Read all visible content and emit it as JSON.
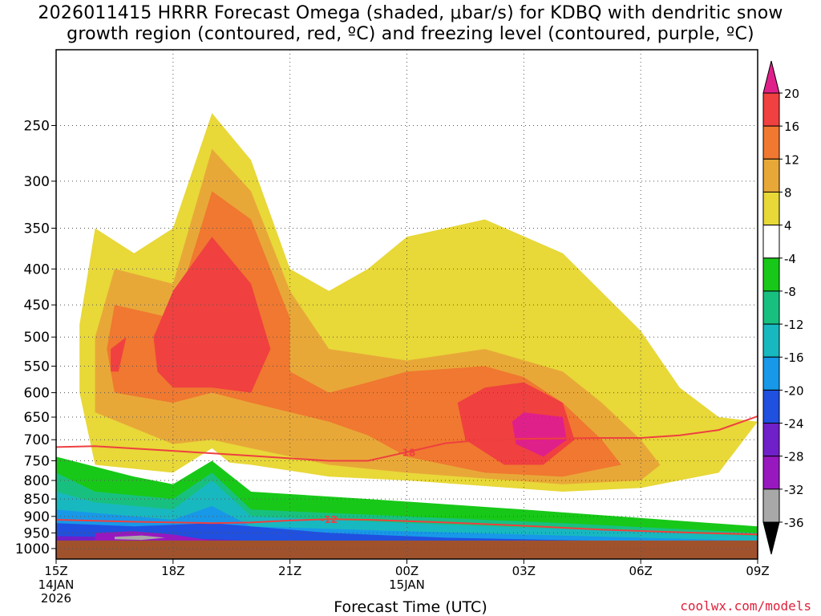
{
  "title_line1": "2026011415 HRRR Forecast Omega (shaded, μbar/s) for KDBQ with dendritic snow",
  "title_line2": "growth region (contoured, red, ºC) and freezing level (contoured, purple, ºC)",
  "credit": "coolwx.com/models",
  "chart_data": {
    "type": "heatmap",
    "xlabel": "Forecast Time (UTC)",
    "ylabel": "",
    "x_ticks": [
      {
        "hour": 15,
        "label": "15Z",
        "date": "14JAN",
        "year": "2026"
      },
      {
        "hour": 18,
        "label": "18Z",
        "date": "",
        "year": ""
      },
      {
        "hour": 21,
        "label": "21Z",
        "date": "",
        "year": ""
      },
      {
        "hour": 24,
        "label": "00Z",
        "date": "15JAN",
        "year": ""
      },
      {
        "hour": 27,
        "label": "03Z",
        "date": "",
        "year": ""
      },
      {
        "hour": 30,
        "label": "06Z",
        "date": "",
        "year": ""
      },
      {
        "hour": 33,
        "label": "09Z",
        "date": "",
        "year": ""
      }
    ],
    "xlim_hours": [
      15,
      33
    ],
    "y_pressure_levels": [
      250,
      300,
      350,
      400,
      450,
      500,
      550,
      600,
      650,
      700,
      750,
      800,
      850,
      900,
      950,
      1000
    ],
    "ylim_hpa": [
      195,
      1035
    ],
    "log_pressure": true,
    "grid": true,
    "colorbar": {
      "position": "right",
      "bins": [
        {
          "from": 20,
          "to": 24,
          "color": "#e0208a",
          "label": ""
        },
        {
          "from": 16,
          "to": 20,
          "color": "#f04040",
          "label": "20"
        },
        {
          "from": 12,
          "to": 16,
          "color": "#f07830",
          "label": "16"
        },
        {
          "from": 8,
          "to": 12,
          "color": "#e8a838",
          "label": "12"
        },
        {
          "from": 4,
          "to": 8,
          "color": "#e8d838",
          "label": "8"
        },
        {
          "from": -4,
          "to": 4,
          "color": "#ffffff",
          "label": "4"
        },
        {
          "from": -8,
          "to": -4,
          "color": "#18c818",
          "label": "-4"
        },
        {
          "from": -12,
          "to": -8,
          "color": "#18c080",
          "label": "-8"
        },
        {
          "from": -16,
          "to": -12,
          "color": "#18b8c0",
          "label": "-12"
        },
        {
          "from": -20,
          "to": -16,
          "color": "#1898e8",
          "label": "-16"
        },
        {
          "from": -24,
          "to": -20,
          "color": "#2050e0",
          "label": "-20"
        },
        {
          "from": -28,
          "to": -24,
          "color": "#7020c8",
          "label": "-24"
        },
        {
          "from": -32,
          "to": -28,
          "color": "#9818c0",
          "label": "-28"
        },
        {
          "from": -36,
          "to": -32,
          "color": "#a8a8a8",
          "label": "-32"
        },
        {
          "from": -40,
          "to": -36,
          "color": "#000000",
          "label": "-36"
        }
      ]
    },
    "contours": [
      {
        "name": "",
        "label": "-18",
        "color": "#ee4040",
        "points": [
          [
            15,
            717
          ],
          [
            16,
            715
          ],
          [
            18,
            726
          ],
          [
            20,
            738
          ],
          [
            22,
            750
          ],
          [
            23,
            750
          ],
          [
            24,
            729
          ],
          [
            25,
            708
          ],
          [
            26,
            700
          ],
          [
            27,
            698
          ],
          [
            29,
            696
          ],
          [
            30,
            696
          ],
          [
            31,
            690
          ],
          [
            32,
            678
          ],
          [
            33,
            648
          ]
        ]
      },
      {
        "name": "",
        "label": "-12",
        "color": "#ee4040",
        "points": [
          [
            15,
            910
          ],
          [
            17,
            916
          ],
          [
            19,
            920
          ],
          [
            20,
            918
          ],
          [
            21,
            912
          ],
          [
            22,
            908
          ],
          [
            23,
            910
          ],
          [
            25,
            918
          ],
          [
            27,
            928
          ],
          [
            29,
            940
          ],
          [
            31,
            948
          ],
          [
            33,
            955
          ]
        ]
      }
    ],
    "omega_regions": [
      {
        "value": 4,
        "band": "8",
        "points": [
          [
            15.6,
            480
          ],
          [
            16,
            350
          ],
          [
            17,
            380
          ],
          [
            18,
            350
          ],
          [
            19,
            240
          ],
          [
            20,
            280
          ],
          [
            21,
            400
          ],
          [
            22,
            430
          ],
          [
            23,
            400
          ],
          [
            24,
            360
          ],
          [
            26,
            340
          ],
          [
            28,
            380
          ],
          [
            30,
            490
          ],
          [
            31,
            590
          ],
          [
            32,
            650
          ],
          [
            33,
            660
          ],
          [
            32,
            780
          ],
          [
            30,
            820
          ],
          [
            28,
            830
          ],
          [
            24,
            800
          ],
          [
            22,
            790
          ],
          [
            20,
            760
          ],
          [
            19,
            750
          ],
          [
            18,
            800
          ],
          [
            16,
            760
          ],
          [
            15.6,
            600
          ]
        ]
      },
      {
        "value": 8,
        "band": "12",
        "points": [
          [
            16,
            500
          ],
          [
            16.5,
            400
          ],
          [
            18,
            420
          ],
          [
            19,
            270
          ],
          [
            20,
            310
          ],
          [
            21,
            430
          ],
          [
            22,
            520
          ],
          [
            24,
            540
          ],
          [
            26,
            520
          ],
          [
            28,
            560
          ],
          [
            29,
            620
          ],
          [
            30,
            700
          ],
          [
            30.5,
            760
          ],
          [
            30,
            800
          ],
          [
            28,
            810
          ],
          [
            24,
            780
          ],
          [
            22,
            760
          ],
          [
            20,
            720
          ],
          [
            19,
            700
          ],
          [
            18,
            710
          ],
          [
            16,
            640
          ]
        ]
      },
      {
        "value": 12,
        "band": "16",
        "points": [
          [
            16.3,
            520
          ],
          [
            16.5,
            450
          ],
          [
            18,
            470
          ],
          [
            19,
            310
          ],
          [
            20,
            340
          ],
          [
            21,
            470
          ],
          [
            21,
            560
          ],
          [
            22,
            600
          ],
          [
            23,
            580
          ],
          [
            24,
            560
          ],
          [
            26,
            550
          ],
          [
            27,
            570
          ],
          [
            28,
            620
          ],
          [
            29,
            700
          ],
          [
            29.5,
            760
          ],
          [
            28,
            790
          ],
          [
            26,
            780
          ],
          [
            24,
            740
          ],
          [
            23,
            690
          ],
          [
            22,
            660
          ],
          [
            20,
            620
          ],
          [
            19,
            600
          ],
          [
            18,
            620
          ],
          [
            16.5,
            600
          ]
        ]
      },
      {
        "value": 16,
        "band": "20",
        "points": [
          [
            16.4,
            520
          ],
          [
            16.8,
            500
          ],
          [
            16.6,
            560
          ],
          [
            16.4,
            560
          ]
        ]
      },
      {
        "value": 16,
        "band": "20",
        "points": [
          [
            17.5,
            500
          ],
          [
            18,
            430
          ],
          [
            19,
            360
          ],
          [
            20,
            420
          ],
          [
            20.5,
            520
          ],
          [
            20,
            600
          ],
          [
            19,
            590
          ],
          [
            18,
            590
          ],
          [
            17.6,
            560
          ]
        ]
      },
      {
        "value": 16,
        "band": "20",
        "points": [
          [
            25.3,
            620
          ],
          [
            26,
            590
          ],
          [
            27,
            580
          ],
          [
            28,
            620
          ],
          [
            28.3,
            700
          ],
          [
            27.5,
            760
          ],
          [
            26.5,
            760
          ],
          [
            25.5,
            700
          ]
        ]
      },
      {
        "value": 20,
        "band": "",
        "points": [
          [
            26.7,
            660
          ],
          [
            27,
            640
          ],
          [
            28,
            650
          ],
          [
            28.1,
            700
          ],
          [
            27.5,
            740
          ],
          [
            26.8,
            710
          ]
        ]
      },
      {
        "value": -4,
        "band": "-4",
        "points": [
          [
            30,
            350
          ],
          [
            31,
            330
          ],
          [
            32,
            380
          ],
          [
            33,
            420
          ],
          [
            33,
            560
          ],
          [
            32,
            590
          ],
          [
            31,
            560
          ],
          [
            30.5,
            460
          ],
          [
            30,
            400
          ]
        ]
      },
      {
        "value": -4,
        "band": "-4",
        "points": [
          [
            25,
            280
          ],
          [
            26.8,
            260
          ],
          [
            26.8,
            300
          ],
          [
            25.6,
            300
          ],
          [
            25,
            290
          ]
        ]
      },
      {
        "value": -4,
        "band": "-4",
        "points": [
          [
            15,
            660
          ],
          [
            16,
            760
          ],
          [
            18,
            780
          ],
          [
            19,
            720
          ],
          [
            20,
            800
          ],
          [
            22,
            820
          ],
          [
            25,
            830
          ],
          [
            28,
            860
          ],
          [
            31,
            880
          ],
          [
            33,
            900
          ],
          [
            33,
            960
          ],
          [
            15,
            960
          ]
        ]
      },
      {
        "value": -8,
        "band": "-8",
        "points": [
          [
            15,
            740
          ],
          [
            17,
            790
          ],
          [
            18,
            810
          ],
          [
            19,
            750
          ],
          [
            20,
            830
          ],
          [
            23,
            850
          ],
          [
            27,
            880
          ],
          [
            33,
            930
          ],
          [
            33,
            970
          ],
          [
            15,
            970
          ]
        ]
      },
      {
        "value": -12,
        "band": "-12",
        "points": [
          [
            15,
            780
          ],
          [
            16,
            830
          ],
          [
            18,
            850
          ],
          [
            19,
            780
          ],
          [
            20,
            880
          ],
          [
            24,
            900
          ],
          [
            28,
            920
          ],
          [
            33,
            950
          ],
          [
            33,
            975
          ],
          [
            15,
            975
          ]
        ]
      },
      {
        "value": -16,
        "band": "-16",
        "points": [
          [
            15,
            830
          ],
          [
            16,
            860
          ],
          [
            18,
            880
          ],
          [
            19,
            800
          ],
          [
            20,
            900
          ],
          [
            24,
            920
          ],
          [
            33,
            960
          ],
          [
            33,
            980
          ],
          [
            15,
            980
          ]
        ]
      },
      {
        "value": -20,
        "band": "-20",
        "points": [
          [
            15,
            880
          ],
          [
            17,
            900
          ],
          [
            18,
            910
          ],
          [
            19,
            870
          ],
          [
            20,
            930
          ],
          [
            24,
            945
          ],
          [
            33,
            975
          ],
          [
            33,
            990
          ],
          [
            15,
            990
          ]
        ]
      },
      {
        "value": -24,
        "band": "-24",
        "points": [
          [
            15,
            920
          ],
          [
            17,
            930
          ],
          [
            19,
            920
          ],
          [
            22,
            950
          ],
          [
            25,
            965
          ],
          [
            33,
            985
          ],
          [
            33,
            995
          ],
          [
            15,
            995
          ]
        ]
      },
      {
        "value": -28,
        "band": "-28",
        "points": [
          [
            15,
            960
          ],
          [
            18,
            965
          ],
          [
            21,
            980
          ],
          [
            24,
            985
          ],
          [
            15,
            990
          ]
        ]
      },
      {
        "value": -32,
        "band": "-32",
        "points": [
          [
            16,
            950
          ],
          [
            17,
            945
          ],
          [
            18,
            955
          ],
          [
            19,
            975
          ],
          [
            16,
            980
          ]
        ]
      },
      {
        "value": -36,
        "band": "-36",
        "points": [
          [
            16.5,
            962
          ],
          [
            17.2,
            958
          ],
          [
            17.8,
            965
          ],
          [
            17.2,
            972
          ],
          [
            16.5,
            970
          ]
        ]
      }
    ],
    "ground_color": "#a0522d"
  }
}
